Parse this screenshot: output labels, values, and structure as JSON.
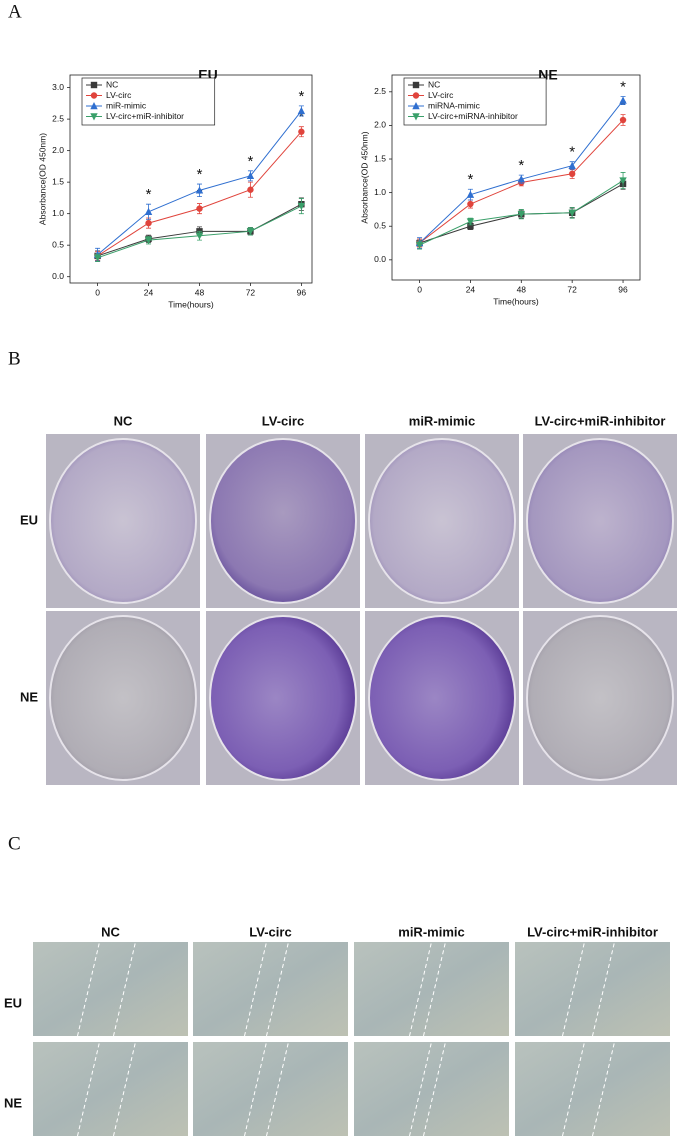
{
  "panel_labels": [
    "A",
    "B",
    "C"
  ],
  "chart_data": [
    {
      "type": "line",
      "title": "EU",
      "x_label": "Time(hours)",
      "y_label": "Absorbance(OD 450nm)",
      "x": [
        0,
        24,
        48,
        72,
        96
      ],
      "xlim": [
        -13,
        101
      ],
      "xticks": [
        0,
        24,
        48,
        72,
        96
      ],
      "ylim": [
        -0.1,
        3.2
      ],
      "yticks": [
        {
          "value": 0,
          "label": "0.0"
        },
        {
          "value": 0.5,
          "label": "0.5"
        },
        {
          "value": 1,
          "label": "1.0"
        },
        {
          "value": 1.5,
          "label": "1.5"
        },
        {
          "value": 2,
          "label": "2.0"
        },
        {
          "value": 2.5,
          "label": "2.5"
        },
        {
          "value": 3,
          "label": "3.0"
        }
      ],
      "legend": "top-left",
      "series": [
        {
          "name": "NC",
          "color": "#3a3a3a",
          "marker": "square",
          "values": [
            0.33,
            0.6,
            0.72,
            0.72,
            1.15
          ],
          "errors": [
            0.08,
            0.06,
            0.07,
            0.06,
            0.1
          ],
          "labels": [
            null,
            null,
            null,
            null,
            null
          ]
        },
        {
          "name": "LV-circ",
          "color": "#e0443c",
          "marker": "circle",
          "values": [
            0.33,
            0.85,
            1.08,
            1.38,
            2.3
          ],
          "errors": [
            0.07,
            0.08,
            0.08,
            0.12,
            0.08
          ],
          "labels": [
            null,
            null,
            "*",
            null,
            "*"
          ]
        },
        {
          "name": "miR-mimic",
          "color": "#2f6fd0",
          "marker": "triangle",
          "values": [
            0.35,
            1.03,
            1.37,
            1.6,
            2.63
          ],
          "errors": [
            0.1,
            0.12,
            0.1,
            0.08,
            0.08
          ],
          "labels": [
            null,
            "*",
            "*",
            "*",
            "*"
          ]
        },
        {
          "name": "LV-circ+miR-inhibitor",
          "color": "#3aa06a",
          "marker": "triangle-down",
          "values": [
            0.3,
            0.58,
            0.65,
            0.72,
            1.12
          ],
          "errors": [
            0.06,
            0.06,
            0.07,
            0.06,
            0.12
          ],
          "labels": [
            null,
            null,
            null,
            null,
            null
          ]
        }
      ]
    },
    {
      "type": "line",
      "title": "NE",
      "x_label": "Time(hours)",
      "y_label": "Absorbance(OD 450nm)",
      "x": [
        0,
        24,
        48,
        72,
        96
      ],
      "xlim": [
        -13,
        104
      ],
      "xticks": [
        0,
        24,
        48,
        72,
        96
      ],
      "ylim": [
        -0.3,
        2.75
      ],
      "yticks": [
        {
          "value": 0,
          "label": "0.0"
        },
        {
          "value": 0.5,
          "label": "0.5"
        },
        {
          "value": 1,
          "label": "1.0"
        },
        {
          "value": 1.5,
          "label": "1.5"
        },
        {
          "value": 2,
          "label": "2.0"
        },
        {
          "value": 2.5,
          "label": "2.5"
        }
      ],
      "legend": "top-left",
      "series": [
        {
          "name": "NC",
          "color": "#3a3a3a",
          "marker": "square",
          "values": [
            0.25,
            0.5,
            0.68,
            0.7,
            1.13
          ],
          "errors": [
            0.06,
            0.05,
            0.06,
            0.07,
            0.08
          ],
          "labels": [
            null,
            null,
            null,
            null,
            null
          ]
        },
        {
          "name": "LV-circ",
          "color": "#e0443c",
          "marker": "circle",
          "values": [
            0.25,
            0.83,
            1.15,
            1.28,
            2.08
          ],
          "errors": [
            0.06,
            0.06,
            0.05,
            0.07,
            0.08
          ],
          "labels": [
            null,
            null,
            null,
            null,
            "*"
          ]
        },
        {
          "name": "miRNA-mimic",
          "color": "#2f6fd0",
          "marker": "triangle",
          "values": [
            0.25,
            0.97,
            1.2,
            1.4,
            2.37
          ],
          "errors": [
            0.08,
            0.08,
            0.06,
            0.06,
            0.06
          ],
          "labels": [
            null,
            "*",
            "*",
            "*",
            "*"
          ]
        },
        {
          "name": "LV-circ+miRNA-inhibitor",
          "color": "#3aa06a",
          "marker": "triangle-down",
          "values": [
            0.22,
            0.57,
            0.68,
            0.7,
            1.18
          ],
          "errors": [
            0.06,
            0.05,
            0.07,
            0.08,
            0.12
          ],
          "labels": [
            null,
            null,
            null,
            null,
            null
          ]
        }
      ]
    }
  ],
  "colony": {
    "columns": [
      "NC",
      "LV-circ",
      "miR-mimic",
      "LV-circ+miR-inhibitor"
    ],
    "rows": [
      "EU",
      "NE"
    ]
  },
  "wound": {
    "columns": [
      "NC",
      "LV-circ",
      "miR-mimic",
      "LV-circ+miR-inhibitor"
    ],
    "rows": [
      "EU",
      "NE"
    ]
  }
}
